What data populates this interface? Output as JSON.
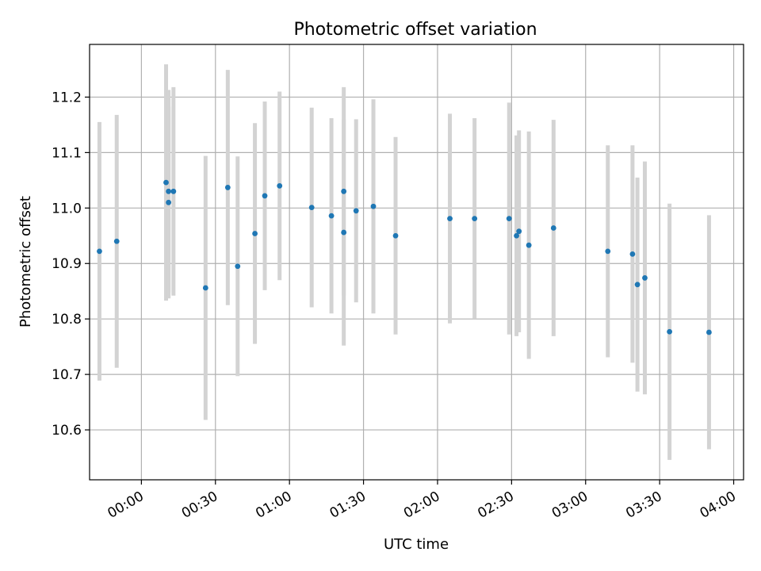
{
  "chart_data": {
    "type": "scatter",
    "title": "Photometric offset variation",
    "xlabel": "UTC time",
    "ylabel": "Photometric offset",
    "x_is_time": true,
    "xlim": [
      "23:39",
      "04:04"
    ],
    "ylim": [
      10.51,
      11.295
    ],
    "grid": true,
    "colors": {
      "point": "#1f77b4",
      "errorbar": "#d3d3d3",
      "grid": "#b0b0b0"
    },
    "x_ticks": [
      "00:00",
      "00:30",
      "01:00",
      "01:30",
      "02:00",
      "02:30",
      "03:00",
      "03:30",
      "04:00"
    ],
    "y_ticks": [
      "10.6",
      "10.7",
      "10.8",
      "10.9",
      "11.0",
      "11.1",
      "11.2"
    ],
    "points": [
      {
        "x": "23:43",
        "y": 10.922,
        "err": 0.233
      },
      {
        "x": "23:50",
        "y": 10.94,
        "err": 0.228
      },
      {
        "x": "00:10",
        "y": 11.046,
        "err": 0.213
      },
      {
        "x": "00:11",
        "y": 11.03,
        "err": 0.183
      },
      {
        "x": "00:11",
        "y": 11.01,
        "err": 0.173
      },
      {
        "x": "00:13",
        "y": 11.03,
        "err": 0.188
      },
      {
        "x": "00:26",
        "y": 10.856,
        "err": 0.238
      },
      {
        "x": "00:35",
        "y": 11.037,
        "err": 0.212
      },
      {
        "x": "00:39",
        "y": 10.895,
        "err": 0.198
      },
      {
        "x": "00:46",
        "y": 10.954,
        "err": 0.199
      },
      {
        "x": "00:50",
        "y": 11.022,
        "err": 0.17
      },
      {
        "x": "00:56",
        "y": 11.04,
        "err": 0.17
      },
      {
        "x": "01:09",
        "y": 11.001,
        "err": 0.18
      },
      {
        "x": "01:17",
        "y": 10.986,
        "err": 0.176
      },
      {
        "x": "01:22",
        "y": 11.03,
        "err": 0.188
      },
      {
        "x": "01:22",
        "y": 10.956,
        "err": 0.204
      },
      {
        "x": "01:27",
        "y": 10.995,
        "err": 0.165
      },
      {
        "x": "01:34",
        "y": 11.003,
        "err": 0.193
      },
      {
        "x": "01:43",
        "y": 10.95,
        "err": 0.178
      },
      {
        "x": "02:05",
        "y": 10.981,
        "err": 0.189
      },
      {
        "x": "02:15",
        "y": 10.981,
        "err": 0.181
      },
      {
        "x": "02:29",
        "y": 10.981,
        "err": 0.209
      },
      {
        "x": "02:32",
        "y": 10.95,
        "err": 0.181
      },
      {
        "x": "02:33",
        "y": 10.958,
        "err": 0.182
      },
      {
        "x": "02:37",
        "y": 10.933,
        "err": 0.205
      },
      {
        "x": "02:47",
        "y": 10.964,
        "err": 0.195
      },
      {
        "x": "03:09",
        "y": 10.922,
        "err": 0.191
      },
      {
        "x": "03:19",
        "y": 10.917,
        "err": 0.196
      },
      {
        "x": "03:21",
        "y": 10.862,
        "err": 0.193
      },
      {
        "x": "03:24",
        "y": 10.874,
        "err": 0.21
      },
      {
        "x": "03:34",
        "y": 10.777,
        "err": 0.231
      },
      {
        "x": "03:50",
        "y": 10.776,
        "err": 0.211
      }
    ]
  }
}
